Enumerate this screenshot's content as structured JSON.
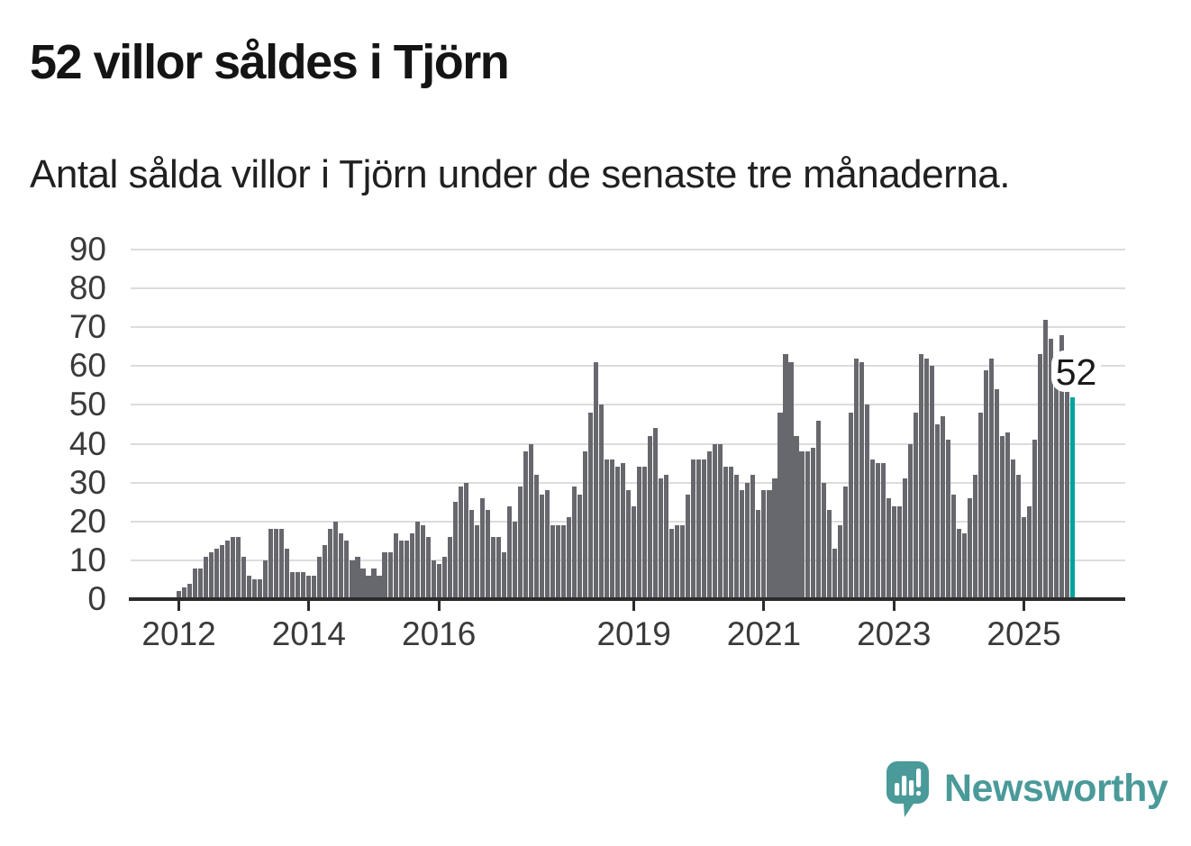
{
  "chart_data": {
    "type": "bar",
    "title": "52 villor såldes i Tjörn",
    "subtitle": "Antal sålda villor i Tjörn under de senaste tre månaderna.",
    "x_start_year": 2012,
    "x_tick_years": [
      2012,
      2014,
      2016,
      2019,
      2021,
      2023,
      2025
    ],
    "y_ticks": [
      0,
      10,
      20,
      30,
      40,
      50,
      60,
      70,
      80,
      90
    ],
    "ylim": [
      0,
      90
    ],
    "grid": "horizontal",
    "legend": "none",
    "bar_color": "#67676e",
    "highlight_color": "#00a29d",
    "highlight_index": 165,
    "annotation": {
      "text": "52",
      "index": 165
    },
    "values": [
      2,
      3,
      4,
      8,
      8,
      11,
      12,
      13,
      14,
      15,
      16,
      16,
      11,
      6,
      5,
      5,
      10,
      18,
      18,
      18,
      13,
      7,
      7,
      7,
      6,
      6,
      11,
      14,
      18,
      20,
      17,
      15,
      10,
      11,
      8,
      6,
      8,
      6,
      12,
      12,
      17,
      15,
      15,
      17,
      20,
      19,
      16,
      10,
      9,
      11,
      16,
      25,
      29,
      30,
      23,
      19,
      26,
      23,
      16,
      16,
      12,
      24,
      20,
      29,
      38,
      40,
      32,
      27,
      28,
      19,
      19,
      19,
      21,
      29,
      27,
      38,
      48,
      61,
      50,
      36,
      36,
      34,
      35,
      28,
      24,
      34,
      34,
      42,
      44,
      31,
      32,
      18,
      19,
      19,
      27,
      36,
      36,
      36,
      38,
      40,
      40,
      34,
      34,
      32,
      28,
      30,
      32,
      23,
      28,
      28,
      31,
      48,
      63,
      61,
      42,
      38,
      38,
      39,
      46,
      30,
      23,
      13,
      19,
      29,
      48,
      62,
      61,
      50,
      36,
      35,
      35,
      26,
      24,
      24,
      31,
      40,
      48,
      63,
      62,
      60,
      45,
      47,
      41,
      27,
      18,
      17,
      26,
      32,
      48,
      59,
      62,
      54,
      42,
      43,
      36,
      32,
      21,
      24,
      41,
      63,
      72,
      67,
      60,
      68,
      55,
      52
    ]
  },
  "branding": {
    "name": "Newsworthy",
    "color": "#4a9a99"
  }
}
